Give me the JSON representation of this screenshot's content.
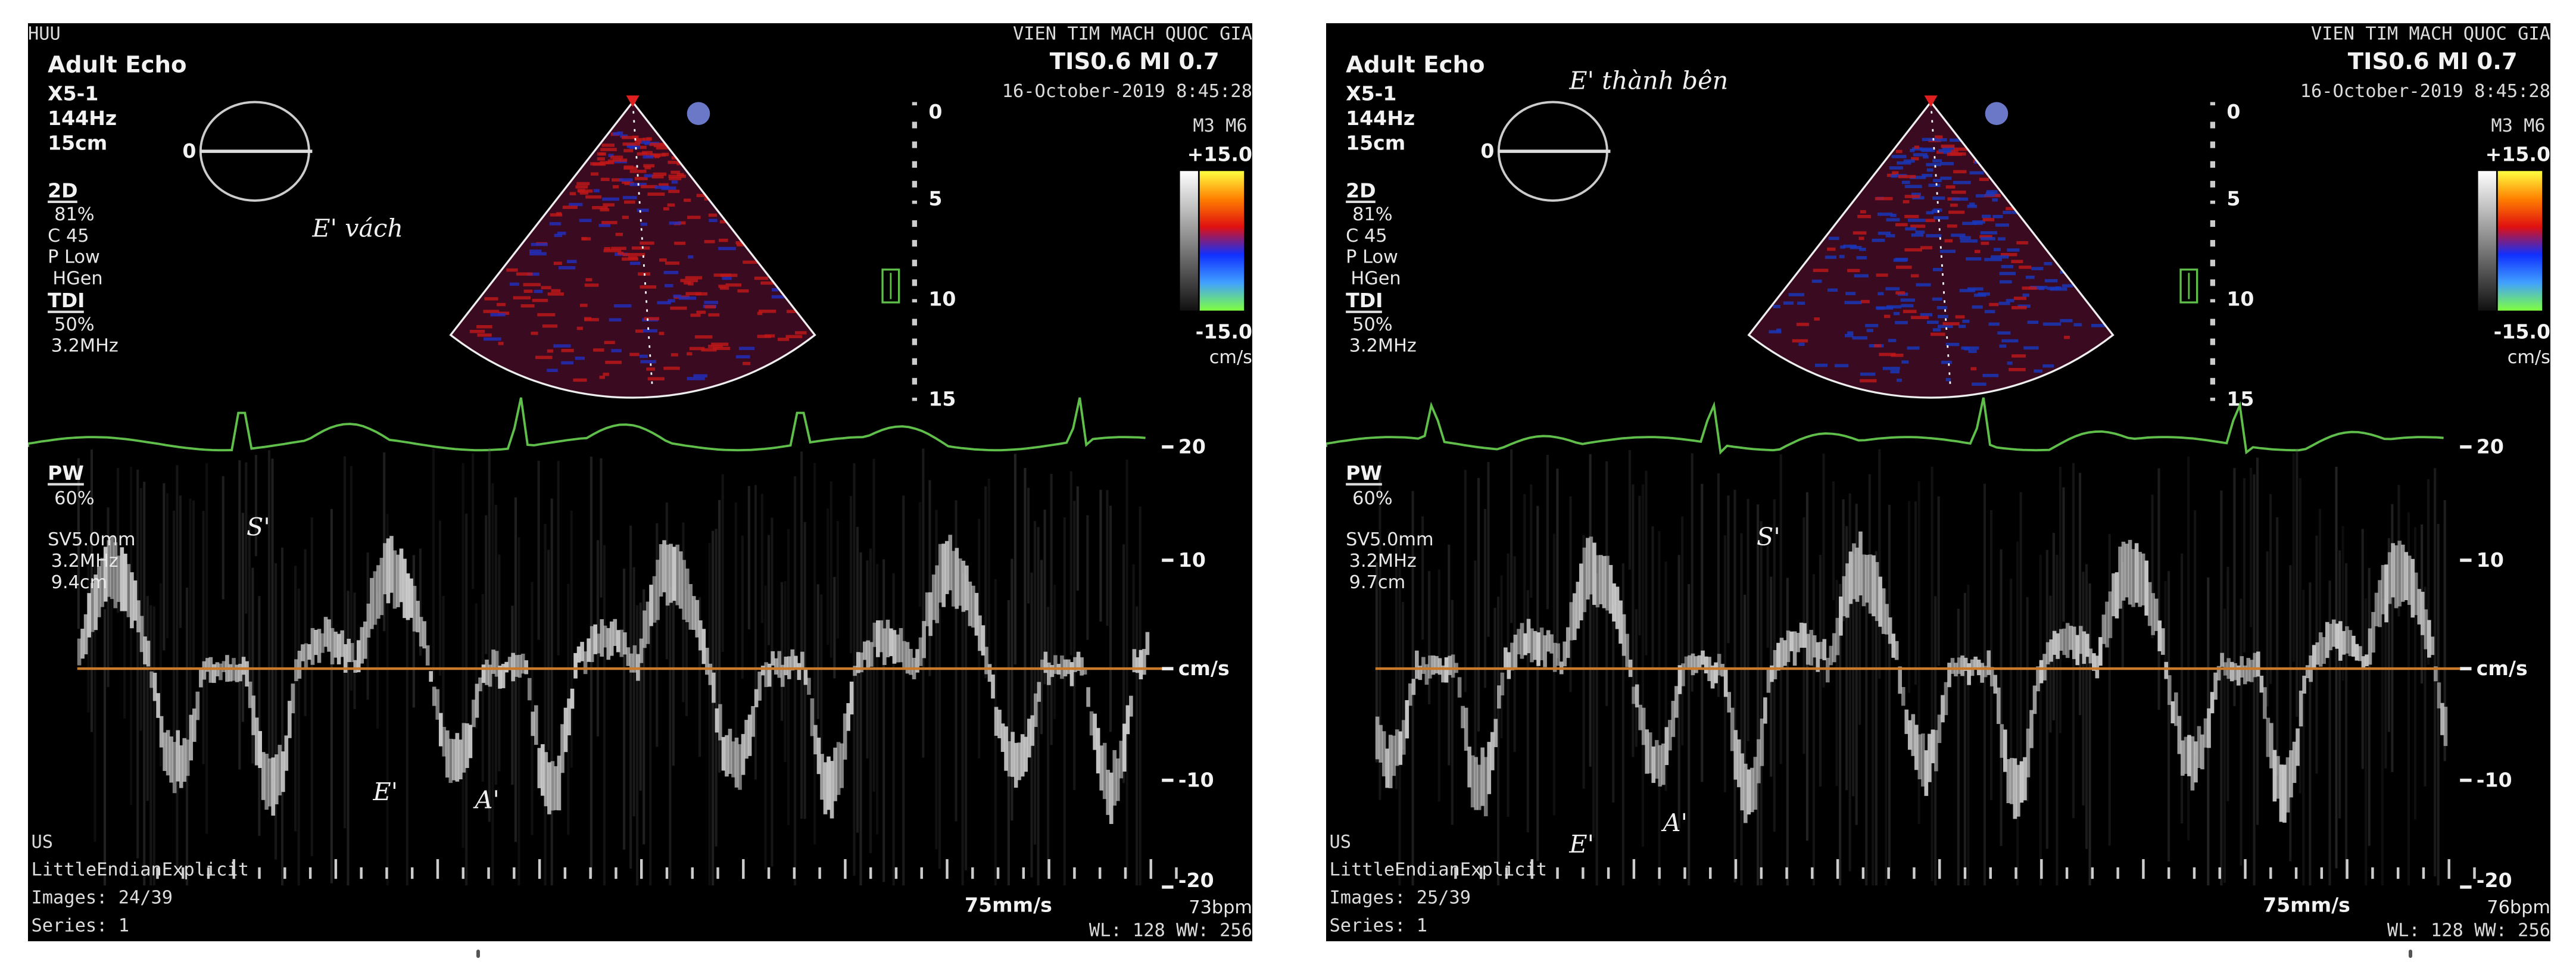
{
  "panels": [
    {
      "header": {
        "operator": "HUU",
        "preset": "Adult Echo",
        "institution": "VIEN TIM MACH QUOC GIA",
        "indices": "TIS0.6  MI 0.7",
        "datetime": "16-October-2019 8:45:28"
      },
      "probe": {
        "model": "X5-1",
        "frame_rate": "144Hz",
        "depth": "15cm"
      },
      "mode_2d": {
        "label": "2D",
        "gain": "81%",
        "compress": "C 45",
        "power": "P Low",
        "freq": "HGen"
      },
      "tdi": {
        "label": "TDI",
        "gain": "50%",
        "freq": "3.2MHz"
      },
      "pw": {
        "label": "PW",
        "gain": "60%",
        "sample_volume": "SV5.0mm",
        "freq": "3.2MHz",
        "gate_depth": "9.4cm"
      },
      "annotation": "E' vách",
      "angle_marker": "0",
      "depth_scale": [
        "0",
        "5",
        "10",
        "15"
      ],
      "colorbar": {
        "map": "M3 M6",
        "max": "+15.0",
        "min": "-15.0",
        "unit": "cm/s",
        "colors": [
          "#ffff40",
          "#ff8000",
          "#e01010",
          "#1030ff",
          "#40a0ff",
          "#80ff40"
        ]
      },
      "velocity_scale": [
        "20",
        "10",
        "cm/s",
        "-10",
        "-20"
      ],
      "wave_labels": {
        "s": "S'",
        "e": "E'",
        "a": "A'"
      },
      "footer": {
        "modality": "US",
        "transfer_syntax": "LittleEndianExplicit",
        "images": "Images: 24/39",
        "series": "Series: 1",
        "sweep": "75mm/s",
        "heart_rate": "73bpm",
        "window": "WL: 128 WW: 256"
      },
      "sector_color": "red"
    },
    {
      "header": {
        "operator": "",
        "preset": "Adult Echo",
        "institution": "VIEN TIM MACH QUOC GIA",
        "indices": "TIS0.6  MI 0.7",
        "datetime": "16-October-2019 8:45:28"
      },
      "probe": {
        "model": "X5-1",
        "frame_rate": "144Hz",
        "depth": "15cm"
      },
      "mode_2d": {
        "label": "2D",
        "gain": "81%",
        "compress": "C 45",
        "power": "P Low",
        "freq": "HGen"
      },
      "tdi": {
        "label": "TDI",
        "gain": "50%",
        "freq": "3.2MHz"
      },
      "pw": {
        "label": "PW",
        "gain": "60%",
        "sample_volume": "SV5.0mm",
        "freq": "3.2MHz",
        "gate_depth": "9.7cm"
      },
      "annotation": "E' thành bên",
      "angle_marker": "0",
      "depth_scale": [
        "0",
        "5",
        "10",
        "15"
      ],
      "colorbar": {
        "map": "M3 M6",
        "max": "+15.0",
        "min": "-15.0",
        "unit": "cm/s",
        "colors": [
          "#ffff40",
          "#ff8000",
          "#e01010",
          "#1030ff",
          "#40a0ff",
          "#80ff40"
        ]
      },
      "velocity_scale": [
        "20",
        "10",
        "cm/s",
        "-10",
        "-20"
      ],
      "wave_labels": {
        "s": "S'",
        "e": "E'",
        "a": "A'"
      },
      "footer": {
        "modality": "US",
        "transfer_syntax": "LittleEndianExplicit",
        "images": "Images: 25/39",
        "series": "Series: 1",
        "sweep": "75mm/s",
        "heart_rate": "76bpm",
        "window": "WL: 128 WW: 256"
      },
      "sector_color": "blue"
    }
  ],
  "colors": {
    "ecg": "#5fbf4a",
    "baseline": "#c87a2a",
    "spectrum": "#d8d8d8"
  }
}
